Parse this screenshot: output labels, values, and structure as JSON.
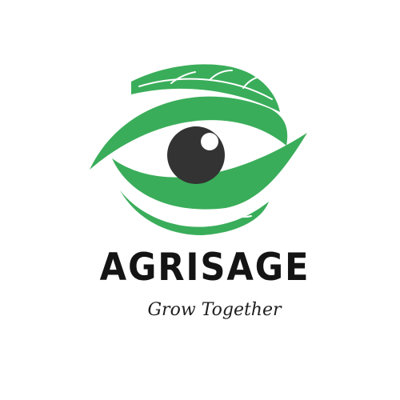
{
  "logo": {
    "icon": "leaf-eye-icon",
    "brand_name": "AGRISAGE",
    "tagline": "Grow Together"
  },
  "colors": {
    "leaf_green": "#3aad5a",
    "pupil_dark": "#333333",
    "brand_text": "#141414",
    "tagline_text": "#1e1e1e",
    "background": "#ffffff"
  }
}
